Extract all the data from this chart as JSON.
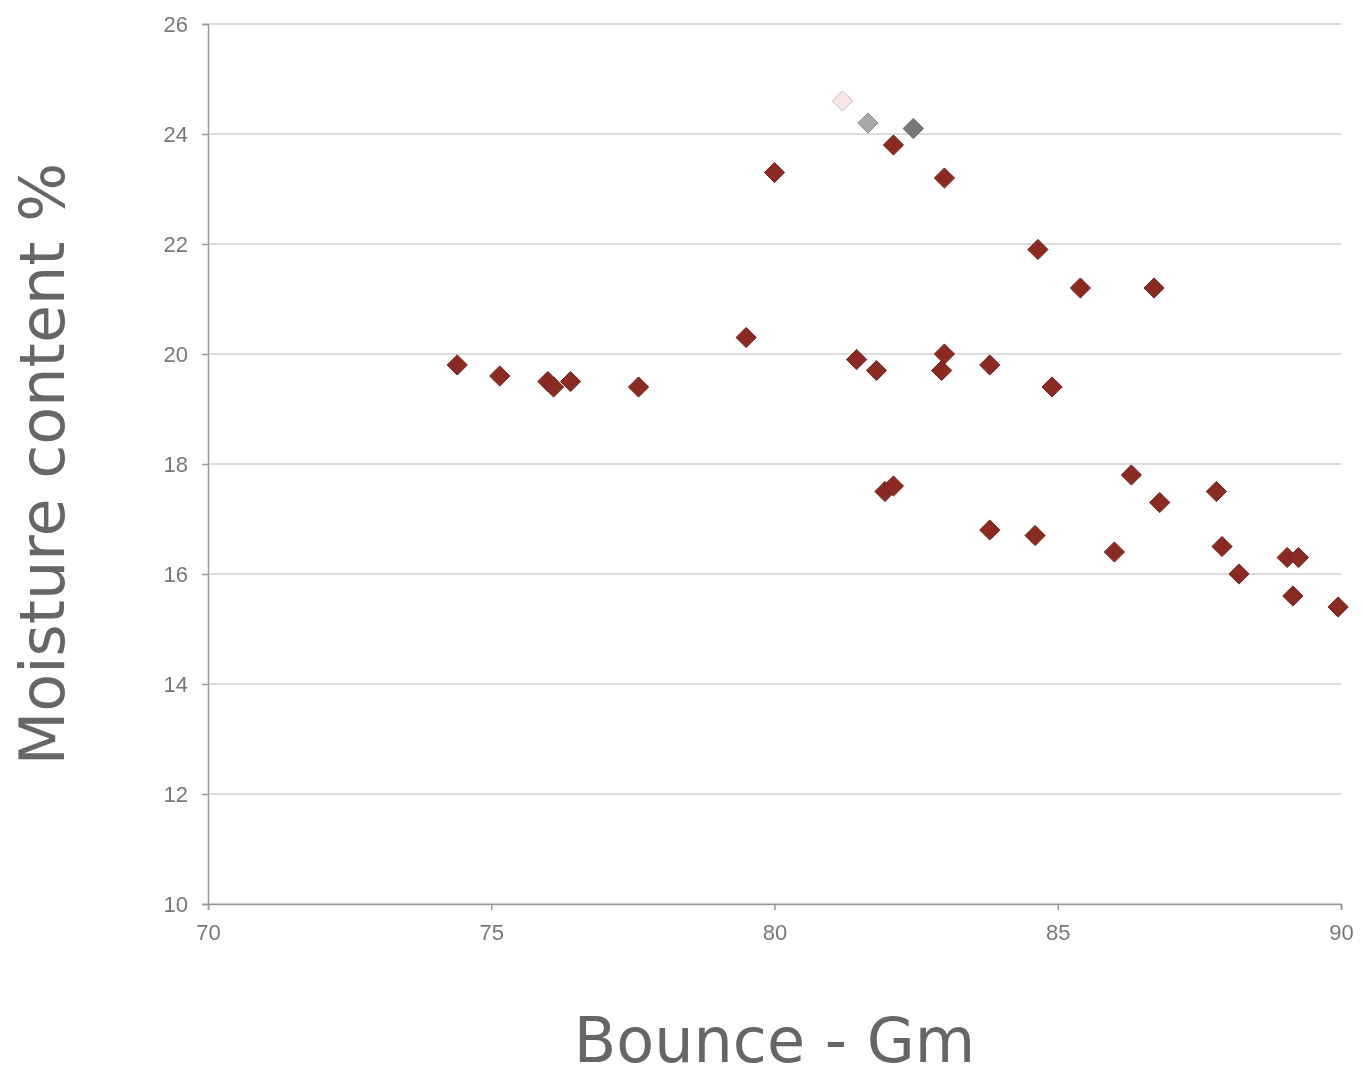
{
  "chart_data": {
    "type": "scatter",
    "xlabel": "Bounce - Gm",
    "ylabel": "Moisture content %",
    "xlim": [
      70,
      90
    ],
    "xticks": [
      70,
      75,
      80,
      85,
      90
    ],
    "ylim": [
      10,
      26
    ],
    "yticks": [
      10,
      12,
      14,
      16,
      18,
      20,
      22,
      24,
      26
    ],
    "grid": "y",
    "marker": "diamond",
    "series": [
      {
        "color": "#8b2a22",
        "x": [
          74.4,
          75.15,
          76.0,
          76.1,
          76.4,
          77.6,
          79.5,
          80.0,
          81.45,
          81.8,
          82.1,
          81.95,
          82.1,
          82.95,
          83.0,
          83.0,
          83.8,
          83.8,
          84.6,
          84.65,
          84.9,
          85.4,
          86.0,
          86.3,
          86.7,
          86.8,
          87.8,
          87.9,
          88.2,
          89.05,
          89.25,
          89.15,
          89.95
        ],
        "values": [
          19.8,
          19.6,
          19.5,
          19.4,
          19.5,
          19.4,
          20.3,
          23.3,
          19.9,
          19.7,
          23.8,
          17.5,
          17.6,
          19.7,
          20.0,
          23.2,
          19.8,
          16.8,
          16.7,
          21.9,
          19.4,
          21.2,
          16.4,
          17.8,
          21.2,
          17.3,
          17.5,
          16.5,
          16.0,
          16.3,
          16.3,
          15.6,
          15.4
        ]
      },
      {
        "color": "#f6e6e6",
        "x": [
          81.2
        ],
        "values": [
          24.6
        ]
      },
      {
        "color": "#a8a8a8",
        "x": [
          81.65
        ],
        "values": [
          24.2
        ]
      },
      {
        "color": "#787878",
        "x": [
          82.45
        ],
        "values": [
          24.1
        ]
      }
    ]
  }
}
